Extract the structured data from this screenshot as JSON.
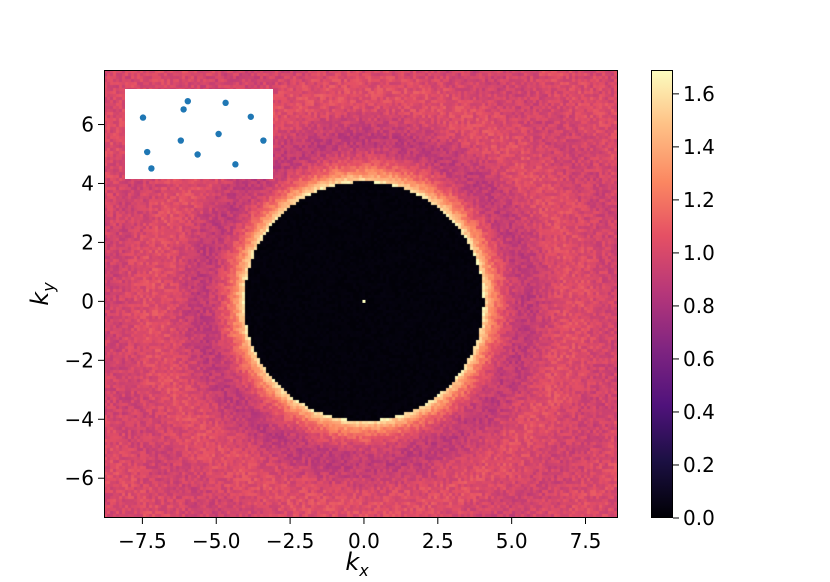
{
  "chart_data": {
    "type": "heatmap",
    "title": "",
    "xlabel": "k_x",
    "ylabel": "k_y",
    "xlim": [
      -8.8,
      8.6
    ],
    "ylim": [
      -7.35,
      7.85
    ],
    "x_ticks": [
      {
        "value": -7.5,
        "label": "−7.5"
      },
      {
        "value": -5.0,
        "label": "−5.0"
      },
      {
        "value": -2.5,
        "label": "−2.5"
      },
      {
        "value": 0.0,
        "label": "0.0"
      },
      {
        "value": 2.5,
        "label": "2.5"
      },
      {
        "value": 5.0,
        "label": "5.0"
      },
      {
        "value": 7.5,
        "label": "7.5"
      }
    ],
    "y_ticks": [
      {
        "value": 6,
        "label": "6"
      },
      {
        "value": 4,
        "label": "4"
      },
      {
        "value": 2,
        "label": "2"
      },
      {
        "value": 0,
        "label": "0"
      },
      {
        "value": -2,
        "label": "−2"
      },
      {
        "value": -4,
        "label": "−4"
      },
      {
        "value": -6,
        "label": "−6"
      }
    ],
    "colormap": "magma",
    "colorbar": {
      "range": [
        0.0,
        1.69
      ],
      "ticks": [
        {
          "value": 0.0,
          "label": "0.0"
        },
        {
          "value": 0.2,
          "label": "0.2"
        },
        {
          "value": 0.4,
          "label": "0.4"
        },
        {
          "value": 0.6,
          "label": "0.6"
        },
        {
          "value": 0.8,
          "label": "0.8"
        },
        {
          "value": 1.0,
          "label": "1.0"
        },
        {
          "value": 1.2,
          "label": "1.2"
        },
        {
          "value": 1.4,
          "label": "1.4"
        },
        {
          "value": 1.6,
          "label": "1.6"
        }
      ]
    },
    "field": {
      "description": "structure factor S(k): ~0 inside radius ~4.0, sharp peak ~1.6 at the rim, decaying to ~1.0 with faint ring oscillations",
      "hole_radius": 4.05,
      "peak_value": 1.6,
      "baseline_value": 1.0,
      "center_point_value": 1.69
    },
    "inset": {
      "type": "scatter",
      "marker_color": "#1f77b4",
      "points": [
        {
          "x": 0.1,
          "y": 0.7
        },
        {
          "x": 0.13,
          "y": 0.28
        },
        {
          "x": 0.16,
          "y": 0.08
        },
        {
          "x": 0.37,
          "y": 0.42
        },
        {
          "x": 0.39,
          "y": 0.8
        },
        {
          "x": 0.42,
          "y": 0.9
        },
        {
          "x": 0.49,
          "y": 0.25
        },
        {
          "x": 0.64,
          "y": 0.5
        },
        {
          "x": 0.69,
          "y": 0.88
        },
        {
          "x": 0.76,
          "y": 0.13
        },
        {
          "x": 0.87,
          "y": 0.71
        },
        {
          "x": 0.96,
          "y": 0.42
        }
      ]
    }
  }
}
